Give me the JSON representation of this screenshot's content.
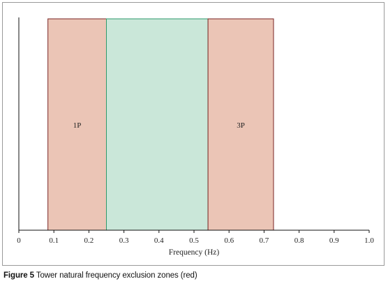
{
  "figure": {
    "label": "Figure 5",
    "caption_text": "Tower natural frequency exclusion zones (red)"
  },
  "chart_data": {
    "type": "area",
    "xlabel": "Frequency (Hz)",
    "ylabel": "",
    "xlim": [
      0,
      1.0
    ],
    "x_ticks": [
      0,
      0.1,
      0.2,
      0.3,
      0.4,
      0.5,
      0.6,
      0.7,
      0.8,
      0.9,
      1.0
    ],
    "x_tick_labels": [
      "0",
      "0.1",
      "0.2",
      "0.3",
      "0.4",
      "0.5",
      "0.6",
      "0.7",
      "0.8",
      "0.9",
      "1.0"
    ],
    "grid": false,
    "zones": [
      {
        "label": "1P",
        "x_start": 0.083,
        "x_end": 0.25,
        "fill": "#ebc5b6",
        "stroke": "#7a2424"
      },
      {
        "label": "",
        "x_start": 0.25,
        "x_end": 0.54,
        "fill": "#cae7d9",
        "stroke": "#2e9a6c"
      },
      {
        "label": "3P",
        "x_start": 0.54,
        "x_end": 0.727,
        "fill": "#ebc5b6",
        "stroke": "#7a2424"
      }
    ]
  }
}
